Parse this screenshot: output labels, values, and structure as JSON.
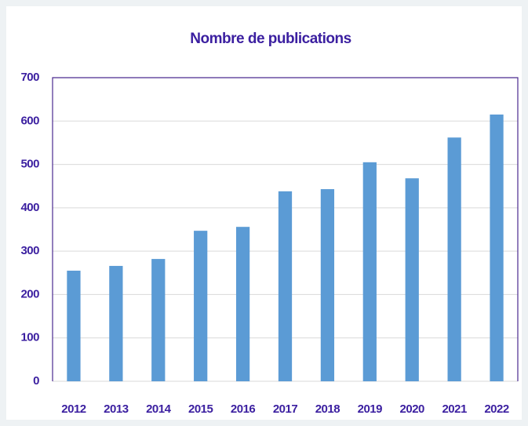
{
  "chart_data": {
    "type": "bar",
    "title": "Nombre de publications",
    "categories": [
      "2012",
      "2013",
      "2014",
      "2015",
      "2016",
      "2017",
      "2018",
      "2019",
      "2020",
      "2021",
      "2022"
    ],
    "values": [
      255,
      266,
      282,
      347,
      356,
      438,
      443,
      505,
      468,
      562,
      615
    ],
    "color": "#5b9bd5",
    "ylim": [
      0,
      700
    ],
    "yticks": [
      0,
      100,
      200,
      300,
      400,
      500,
      600,
      700
    ],
    "grid": true
  }
}
